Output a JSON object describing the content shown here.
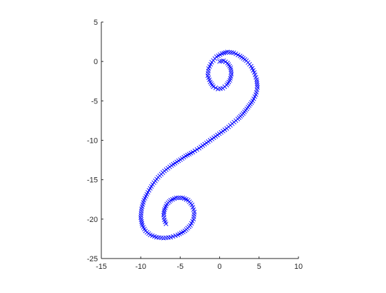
{
  "chart_data": {
    "type": "scatter",
    "title": "",
    "xlabel": "",
    "ylabel": "",
    "xlim": [
      -15,
      10
    ],
    "ylim": [
      -25,
      5
    ],
    "xticks": [
      "-15",
      "-10",
      "-5",
      "0",
      "5",
      "10"
    ],
    "yticks": [
      "5",
      "0",
      "-5",
      "-10",
      "-15",
      "-20",
      "-25"
    ],
    "grid": false,
    "marker": "x",
    "marker_color": "#0000ff",
    "axis_color": "#262626",
    "series": [
      {
        "x": [
          0.0,
          0.5,
          1.0,
          1.4,
          1.5,
          1.3,
          0.9,
          0.4,
          -0.2,
          -0.8,
          -1.2,
          -1.5,
          -1.4,
          -1.0,
          -0.4,
          0.3,
          1.0,
          1.8,
          2.6,
          3.4,
          4.0,
          4.4,
          4.7,
          4.8,
          4.6,
          4.2,
          3.6,
          3.0,
          2.3,
          1.6,
          0.9,
          0.2,
          -0.5,
          -1.2,
          -1.9,
          -2.6,
          -3.4,
          -4.3,
          -5.2,
          -6.1,
          -7.0,
          -7.8,
          -8.5,
          -9.1,
          -9.6,
          -9.9,
          -10.0,
          -9.8,
          -9.4,
          -8.8,
          -8.0,
          -7.1,
          -6.2,
          -5.3,
          -4.4,
          -3.7,
          -3.3,
          -3.2,
          -3.5,
          -4.0,
          -4.7,
          -5.5,
          -6.2,
          -6.7,
          -7.0,
          -7.1,
          -7.0,
          -6.8
        ],
        "y": [
          0.0,
          0.1,
          -0.2,
          -0.8,
          -1.6,
          -2.4,
          -3.0,
          -3.4,
          -3.5,
          -3.2,
          -2.6,
          -1.8,
          -0.9,
          -0.1,
          0.6,
          1.0,
          1.2,
          1.1,
          0.7,
          0.1,
          -0.6,
          -1.4,
          -2.3,
          -3.3,
          -4.2,
          -5.0,
          -5.8,
          -6.6,
          -7.3,
          -7.9,
          -8.5,
          -9.0,
          -9.5,
          -10.0,
          -10.5,
          -11.0,
          -11.5,
          -12.0,
          -12.6,
          -13.2,
          -13.9,
          -14.7,
          -15.6,
          -16.6,
          -17.6,
          -18.7,
          -19.8,
          -20.8,
          -21.5,
          -22.0,
          -22.3,
          -22.4,
          -22.3,
          -22.0,
          -21.5,
          -20.8,
          -20.0,
          -19.1,
          -18.2,
          -17.6,
          -17.3,
          -17.3,
          -17.6,
          -18.1,
          -18.8,
          -19.5,
          -20.1,
          -20.6
        ]
      }
    ]
  }
}
